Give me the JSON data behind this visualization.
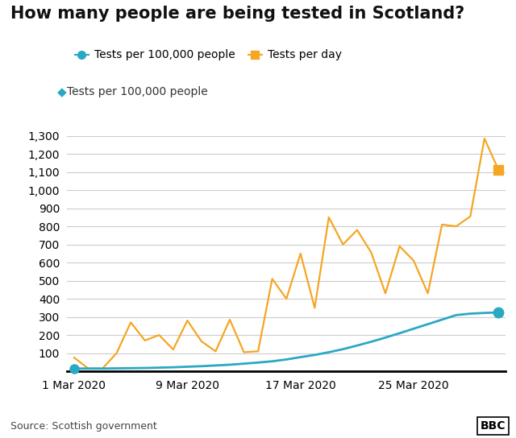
{
  "title": "How many people are being tested in Scotland?",
  "legend": [
    {
      "label": "Tests per 100,000 people",
      "color": "#2aa8c4",
      "marker": "o"
    },
    {
      "label": "Tests per day",
      "color": "#f5a623",
      "marker": "s"
    }
  ],
  "x_tick_labels": [
    "1 Mar 2020",
    "9 Mar 2020",
    "17 Mar 2020",
    "25 Mar 2020"
  ],
  "x_tick_positions": [
    0,
    8,
    16,
    24
  ],
  "ylim": [
    -30,
    1300
  ],
  "yticks": [
    100,
    200,
    300,
    400,
    500,
    600,
    700,
    800,
    900,
    1000,
    1100,
    1200,
    1300
  ],
  "source": "Source: Scottish government",
  "bbc_logo": "BBC",
  "tests_per_100k": [
    15,
    15,
    15,
    16,
    17,
    18,
    20,
    22,
    25,
    28,
    32,
    36,
    42,
    48,
    55,
    65,
    78,
    90,
    105,
    122,
    142,
    163,
    186,
    210,
    235,
    260,
    285,
    310,
    318,
    322,
    325
  ],
  "tests_per_day": [
    75,
    15,
    15,
    100,
    270,
    170,
    200,
    120,
    280,
    165,
    110,
    285,
    105,
    110,
    510,
    400,
    650,
    350,
    850,
    700,
    780,
    655,
    430,
    690,
    610,
    430,
    810,
    800,
    855,
    1285,
    1110
  ],
  "line1_color": "#2aa8c4",
  "line2_color": "#f5a623",
  "line1_marker": "o",
  "line2_marker": "s",
  "background_color": "#ffffff",
  "grid_color": "#cccccc",
  "spine_color": "#000000",
  "title_fontsize": 15,
  "label_fontsize": 10,
  "source_fontsize": 9,
  "tick_fontsize": 10
}
